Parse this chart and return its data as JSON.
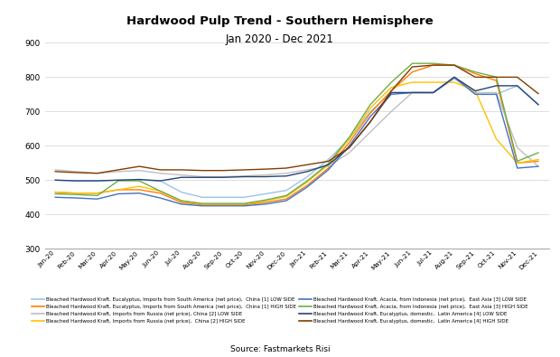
{
  "title": "Hardwood Pulp Trend - Southern Hemisphere",
  "subtitle": "Jan 2020 - Dec 2021",
  "source": "Source: Fastmarkets Risi",
  "xlabels": [
    "Jan-20",
    "Feb-20",
    "Mar-20",
    "Apr-20",
    "May-20",
    "Jun-20",
    "Jul-20",
    "Aug-20",
    "Sep-20",
    "Oct-20",
    "Nov-20",
    "Dec-20",
    "Jan-21",
    "Feb-21",
    "Mar-21",
    "Apr-21",
    "May-21",
    "Jun-21",
    "Jul-21",
    "Aug-21",
    "Sep-21",
    "Oct-21",
    "Nov-21",
    "Dec-21"
  ],
  "ylim": [
    300,
    900
  ],
  "yticks": [
    300,
    400,
    500,
    600,
    700,
    800,
    900
  ],
  "series": [
    {
      "label": "Bleached Hardwood Kraft, Eucalyptus, Imports from South America (net price),  China [1] LOW SIDE",
      "color": "#9DC3E6",
      "values": [
        500,
        498,
        498,
        500,
        500,
        498,
        465,
        450,
        450,
        450,
        460,
        470,
        510,
        560,
        620,
        700,
        755,
        755,
        755,
        800,
        750,
        750,
        775,
        720
      ]
    },
    {
      "label": "Bleached Hardwood Kraft, Eucalyptus, Imports from South America (net price),  China [1] HIGH SIDE",
      "color": "#FF7F00",
      "values": [
        465,
        462,
        462,
        472,
        472,
        462,
        435,
        428,
        428,
        428,
        435,
        445,
        485,
        535,
        610,
        695,
        760,
        815,
        835,
        835,
        810,
        790,
        550,
        555
      ]
    },
    {
      "label": "Bleached Hardwood Kraft, Imports from Russia (net price), China [2] LOW SIDE",
      "color": "#BFBFBF",
      "values": [
        530,
        525,
        520,
        525,
        528,
        520,
        515,
        510,
        510,
        512,
        515,
        520,
        530,
        540,
        580,
        640,
        700,
        755,
        755,
        795,
        755,
        755,
        595,
        540
      ]
    },
    {
      "label": "Bleached Hardwood Kraft, Imports from Russia (net price),  China [2] HIGH SIDE",
      "color": "#FFC000",
      "values": [
        465,
        462,
        462,
        472,
        482,
        468,
        440,
        430,
        430,
        430,
        440,
        452,
        495,
        545,
        620,
        710,
        770,
        785,
        785,
        785,
        760,
        620,
        550,
        560
      ]
    },
    {
      "label": "Bleached Hardwood Kraft, Acacia, from Indonesia (net price),  East Asia [3] LOW SIDE",
      "color": "#4472C4",
      "values": [
        450,
        448,
        445,
        460,
        462,
        448,
        430,
        425,
        425,
        425,
        430,
        440,
        480,
        530,
        600,
        685,
        750,
        755,
        755,
        800,
        750,
        750,
        535,
        540
      ]
    },
    {
      "label": "Bleached Hardwood Kraft, Acacia, from Indonesia (net price),  East Asia [3] HIGH SIDE",
      "color": "#70AD47",
      "values": [
        460,
        458,
        455,
        498,
        498,
        468,
        440,
        432,
        432,
        432,
        442,
        455,
        498,
        548,
        625,
        720,
        785,
        840,
        840,
        835,
        815,
        800,
        555,
        580
      ]
    },
    {
      "label": "Bleached Hardwood Kraft, Eucalyptus, domestic,  Latin America [4] LOW SIDE",
      "color": "#264478",
      "values": [
        500,
        498,
        498,
        500,
        502,
        498,
        508,
        508,
        508,
        510,
        510,
        512,
        525,
        545,
        595,
        670,
        755,
        755,
        755,
        800,
        760,
        775,
        775,
        720
      ]
    },
    {
      "label": "Bleached Hardwood Kraft, Eucalyptus, domestic,  Latin America [4] HIGH SIDE",
      "color": "#833C00",
      "values": [
        525,
        522,
        520,
        530,
        540,
        530,
        530,
        528,
        528,
        530,
        532,
        535,
        545,
        555,
        595,
        670,
        760,
        830,
        835,
        835,
        800,
        800,
        800,
        752
      ]
    }
  ]
}
